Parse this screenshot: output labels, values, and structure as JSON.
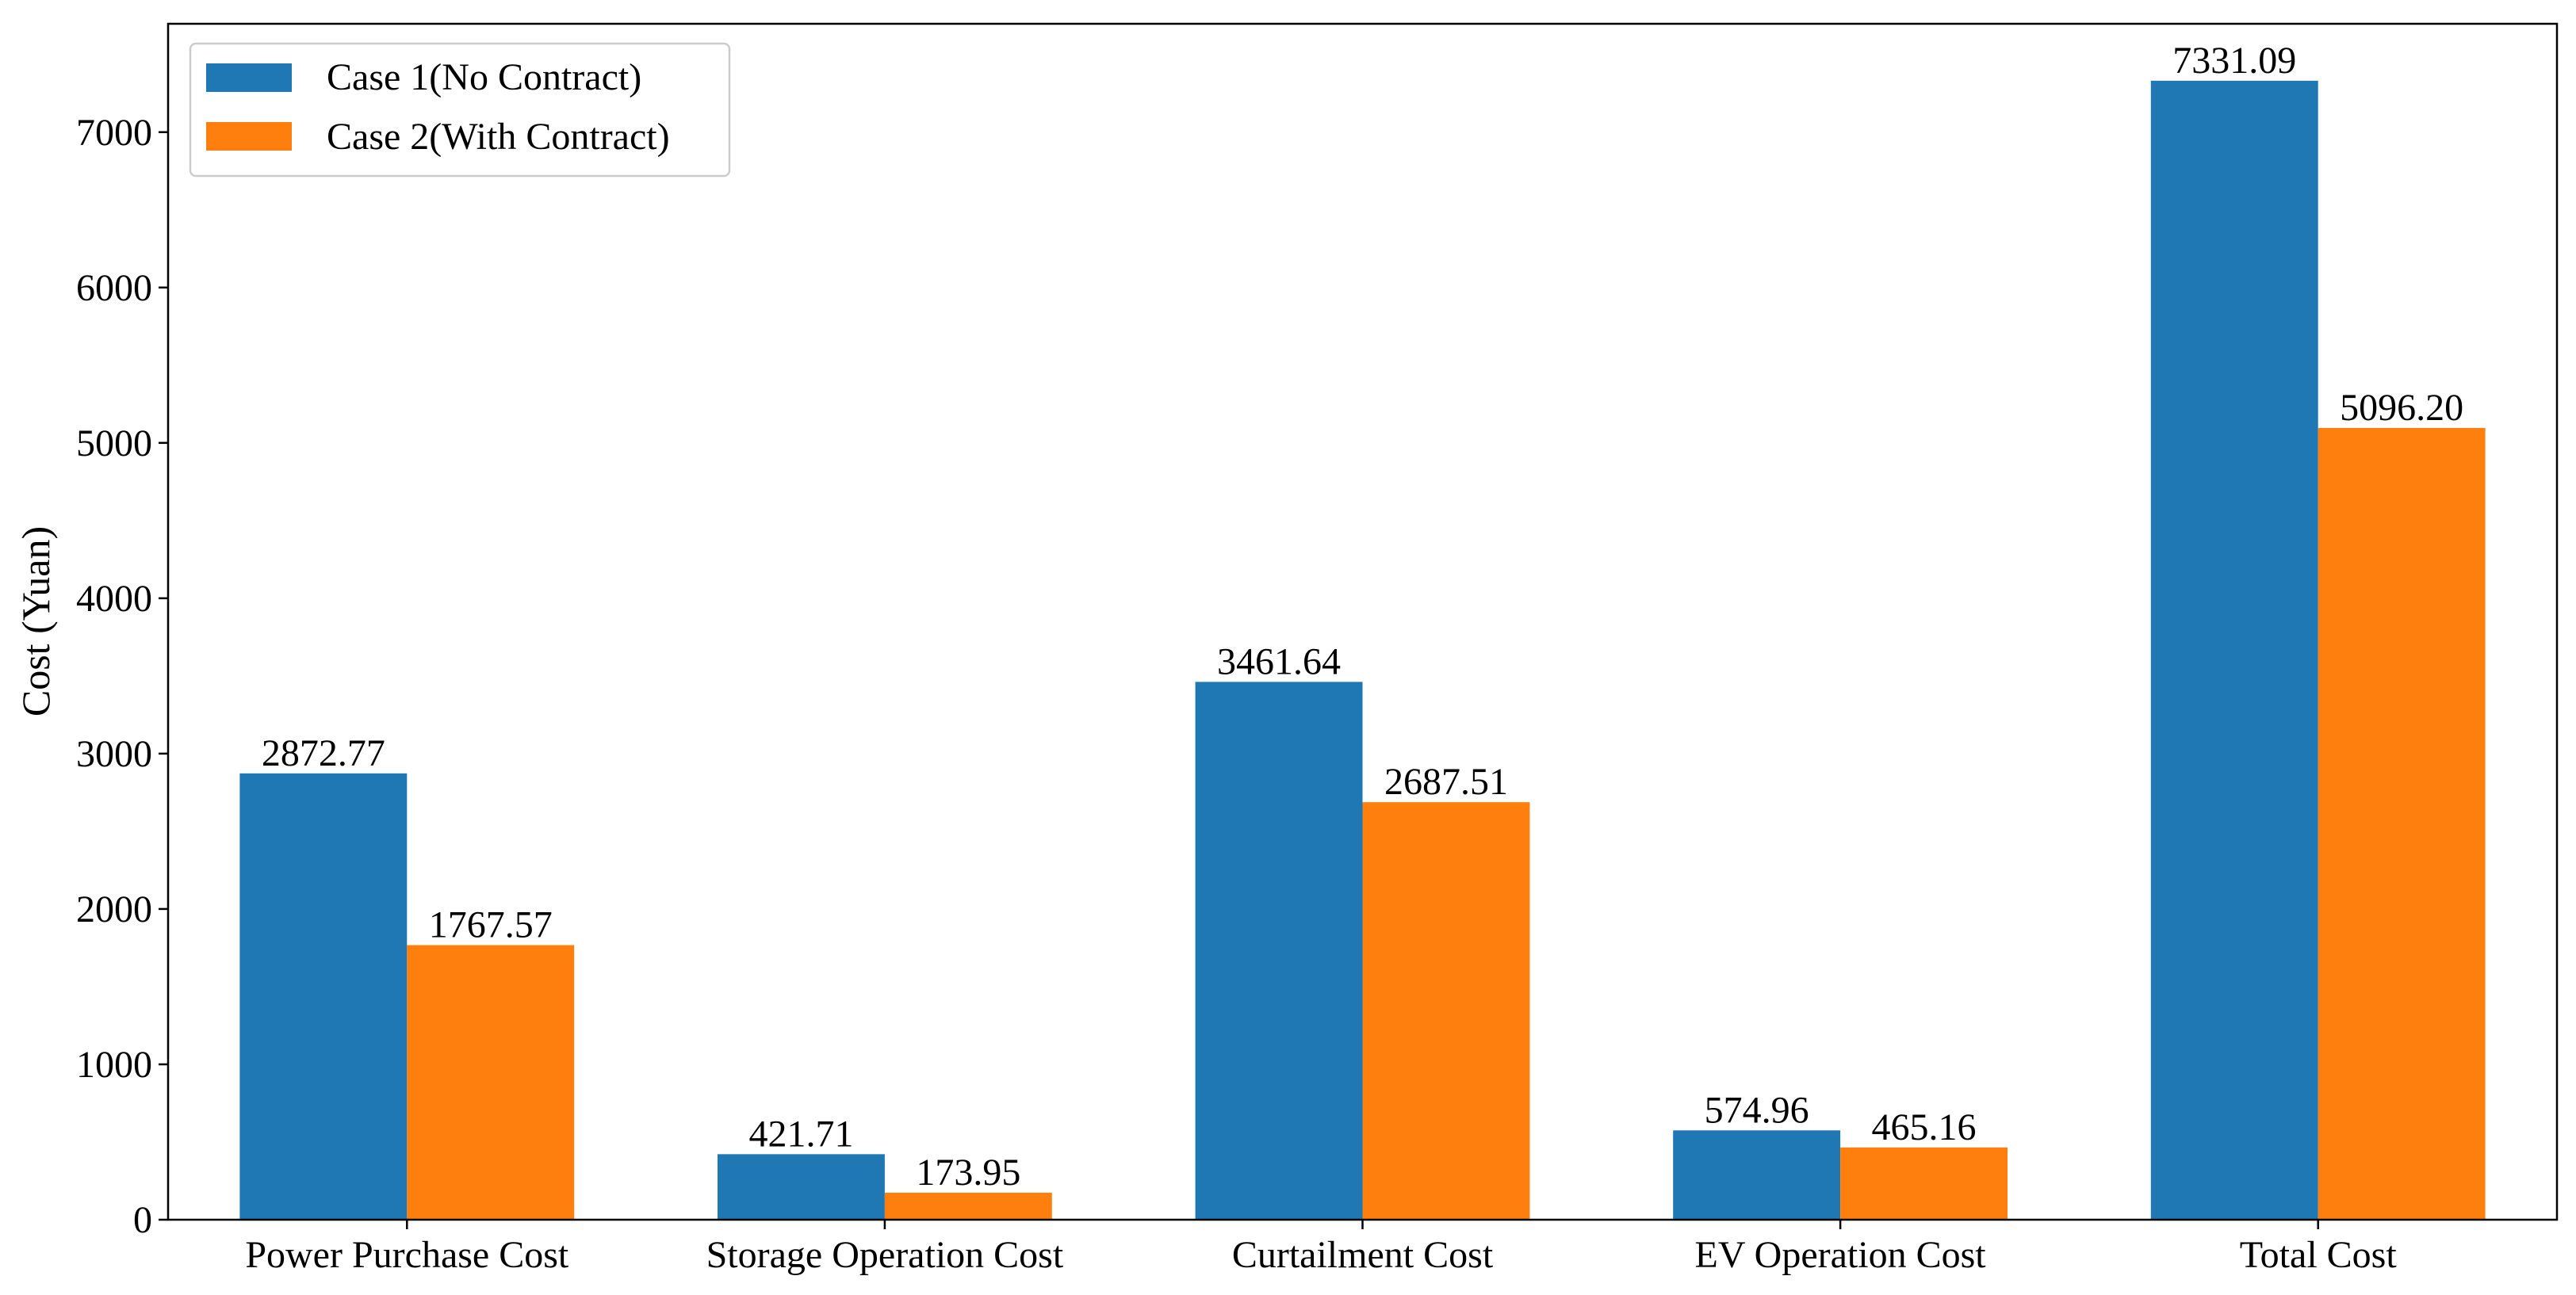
{
  "chart_data": {
    "type": "bar",
    "title": "",
    "xlabel": "",
    "ylabel": "Cost (Yuan)",
    "categories": [
      "Power Purchase Cost",
      "Storage Operation Cost",
      "Curtailment Cost",
      "EV Operation Cost",
      "Total Cost"
    ],
    "series": [
      {
        "name": "Case 1(No Contract)",
        "color": "#1f77b4",
        "values": [
          2872.77,
          421.71,
          3461.64,
          574.96,
          7331.09
        ],
        "labels": [
          "2872.77",
          "421.71",
          "3461.64",
          "574.96",
          "7331.09"
        ]
      },
      {
        "name": "Case 2(With Contract)",
        "color": "#ff7f0e",
        "values": [
          1767.57,
          173.95,
          2687.51,
          465.16,
          5096.2
        ],
        "labels": [
          "1767.57",
          "173.95",
          "2687.51",
          "465.16",
          "5096.20"
        ]
      }
    ],
    "ylim": [
      0,
      7697.6
    ],
    "yticks": [
      0,
      1000,
      2000,
      3000,
      4000,
      5000,
      6000,
      7000
    ],
    "ytick_labels": [
      "0",
      "1000",
      "2000",
      "3000",
      "4000",
      "5000",
      "6000",
      "7000"
    ],
    "grid": false,
    "legend_position": "top-left"
  }
}
